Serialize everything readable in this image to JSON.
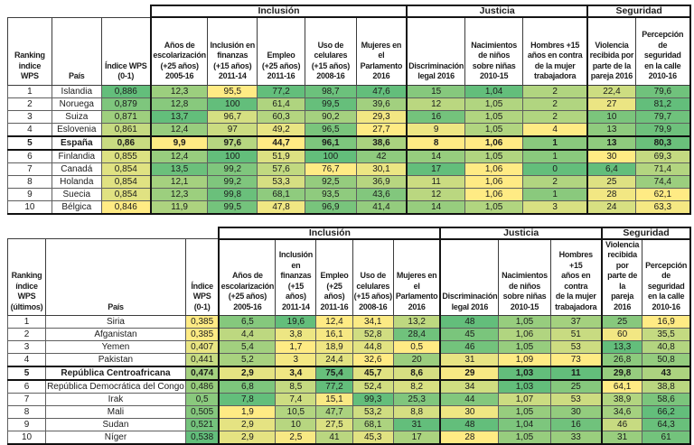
{
  "scale": {
    "low_color": "#FFEB84",
    "high_color": "#63BE7B"
  },
  "groups": [
    {
      "label": "Inclusión",
      "span": 5
    },
    {
      "label": "Justicia",
      "span": 3
    },
    {
      "label": "Seguridad",
      "span": 2
    }
  ],
  "columns": {
    "country": "País",
    "metrics": [
      "Índice WPS\n(0-1)",
      "Años de\nescolarización\n(+25 años)\n2005-16",
      "Inclusión en\nfinanzas\n(+15 años)\n2011-14",
      "Empleo\n(+25 años)\n2011-16",
      "Uso de\ncelulares\n(+15 años)\n2008-16",
      "Mujeres en\nel\nParlamento\n2016",
      "Discriminación\nlegal 2016",
      "Nacimientos\nde niños\nsobre niñas\n2010-15",
      "Hombres +15\naños en contra\nde la mujer\ntrabajadora",
      "Violencia\nrecibida por\nparte de la\npareja 2016",
      "Percepción\nde\nseguridad\nen la calle\n2010-16"
    ],
    "inverted_metrics": [
      7,
      8,
      9
    ]
  },
  "chart_data": [
    {
      "type": "table",
      "rank_header": "Ranking\nindice\nWPS",
      "rows": [
        {
          "rank": "1",
          "country": "Islandia",
          "bold": false,
          "values": [
            "0,886",
            "12,3",
            "95,5",
            "77,2",
            "98,7",
            "47,6",
            "15",
            "1,04",
            "2",
            "22,4",
            "79,6"
          ]
        },
        {
          "rank": "2",
          "country": "Noruega",
          "bold": false,
          "values": [
            "0,879",
            "12,8",
            "100",
            "61,4",
            "99,5",
            "39,6",
            "12",
            "1,05",
            "2",
            "27",
            "81,2"
          ]
        },
        {
          "rank": "3",
          "country": "Suiza",
          "bold": false,
          "values": [
            "0,871",
            "13,7",
            "96,7",
            "60,3",
            "90,2",
            "29,3",
            "16",
            "1,05",
            "2",
            "10",
            "79,7"
          ]
        },
        {
          "rank": "4",
          "country": "Eslovenia",
          "bold": false,
          "values": [
            "0,861",
            "12,4",
            "97",
            "49,2",
            "96,5",
            "27,7",
            "9",
            "1,05",
            "4",
            "13",
            "79,9"
          ]
        },
        {
          "rank": "5",
          "country": "España",
          "bold": true,
          "values": [
            "0,86",
            "9,9",
            "97,6",
            "44,7",
            "96,1",
            "38,6",
            "8",
            "1,06",
            "1",
            "13",
            "80,3"
          ]
        },
        {
          "rank": "6",
          "country": "Finlandia",
          "bold": false,
          "values": [
            "0,855",
            "12,4",
            "100",
            "51,9",
            "100",
            "42",
            "14",
            "1,05",
            "1",
            "30",
            "69,3"
          ]
        },
        {
          "rank": "7",
          "country": "Canadá",
          "bold": false,
          "values": [
            "0,854",
            "13,5",
            "99,2",
            "57,6",
            "76,7",
            "30,1",
            "17",
            "1,06",
            "0",
            "6,4",
            "71,4"
          ]
        },
        {
          "rank": "8",
          "country": "Holanda",
          "bold": false,
          "values": [
            "0,854",
            "12,1",
            "99,2",
            "53,3",
            "92,5",
            "36,9",
            "11",
            "1,06",
            "2",
            "25",
            "74,4"
          ]
        },
        {
          "rank": "9",
          "country": "Suecia",
          "bold": false,
          "values": [
            "0,854",
            "12,3",
            "99,8",
            "68,1",
            "93,5",
            "43,6",
            "12",
            "1,06",
            "1",
            "28",
            "62,1"
          ]
        },
        {
          "rank": "10",
          "country": "Bélgica",
          "bold": false,
          "values": [
            "0,846",
            "11,9",
            "99,5",
            "47,8",
            "96,9",
            "41,4",
            "14",
            "1,05",
            "3",
            "24",
            "63,3"
          ]
        }
      ]
    },
    {
      "type": "table",
      "rank_header": "Ranking\níndice\nWPS\n(últimos)",
      "rows": [
        {
          "rank": "1",
          "country": "Siria",
          "bold": false,
          "values": [
            "0,385",
            "6,5",
            "19,6",
            "12,4",
            "34,1",
            "13,2",
            "48",
            "1,05",
            "37",
            "25",
            "16,9"
          ]
        },
        {
          "rank": "2",
          "country": "Afganistan",
          "bold": false,
          "values": [
            "0,385",
            "4,4",
            "3,8",
            "16,1",
            "52,8",
            "28,4",
            "45",
            "1,06",
            "51",
            "60",
            "35,5"
          ]
        },
        {
          "rank": "3",
          "country": "Yemen",
          "bold": false,
          "values": [
            "0,407",
            "5,4",
            "1,7",
            "18,9",
            "44,8",
            "0,5",
            "46",
            "1,05",
            "53",
            "13,3",
            "40,8"
          ]
        },
        {
          "rank": "4",
          "country": "Pakistan",
          "bold": false,
          "values": [
            "0,441",
            "5,2",
            "3",
            "24,4",
            "32,6",
            "20",
            "31",
            "1,09",
            "73",
            "26,8",
            "50,8"
          ]
        },
        {
          "rank": "5",
          "country": "República Centroafricana",
          "bold": true,
          "values": [
            "0,474",
            "2,9",
            "3,4",
            "75,4",
            "45,7",
            "8,6",
            "29",
            "1,03",
            "11",
            "29,8",
            "43"
          ]
        },
        {
          "rank": "6",
          "country": "República Democrática del Congo",
          "bold": false,
          "values": [
            "0,486",
            "6,8",
            "8,5",
            "77,2",
            "52,4",
            "8,2",
            "34",
            "1,03",
            "25",
            "64,1",
            "38,8"
          ]
        },
        {
          "rank": "7",
          "country": "Irak",
          "bold": false,
          "values": [
            "0,5",
            "7,8",
            "7,4",
            "15,1",
            "99,3",
            "25,3",
            "44",
            "1,07",
            "53",
            "38,9",
            "58,6"
          ]
        },
        {
          "rank": "8",
          "country": "Mali",
          "bold": false,
          "values": [
            "0,505",
            "1,9",
            "10,5",
            "47,7",
            "53,2",
            "8,8",
            "30",
            "1,05",
            "30",
            "34,6",
            "66,2"
          ]
        },
        {
          "rank": "9",
          "country": "Sudan",
          "bold": false,
          "values": [
            "0,521",
            "2,9",
            "10",
            "27,5",
            "68,1",
            "31",
            "48",
            "1,04",
            "16",
            "46",
            "64,3"
          ]
        },
        {
          "rank": "10",
          "country": "Níger",
          "bold": false,
          "values": [
            "0,538",
            "2,9",
            "2,5",
            "41",
            "45,3",
            "17",
            "28",
            "1,05",
            "33",
            "31",
            "61"
          ]
        }
      ]
    }
  ]
}
